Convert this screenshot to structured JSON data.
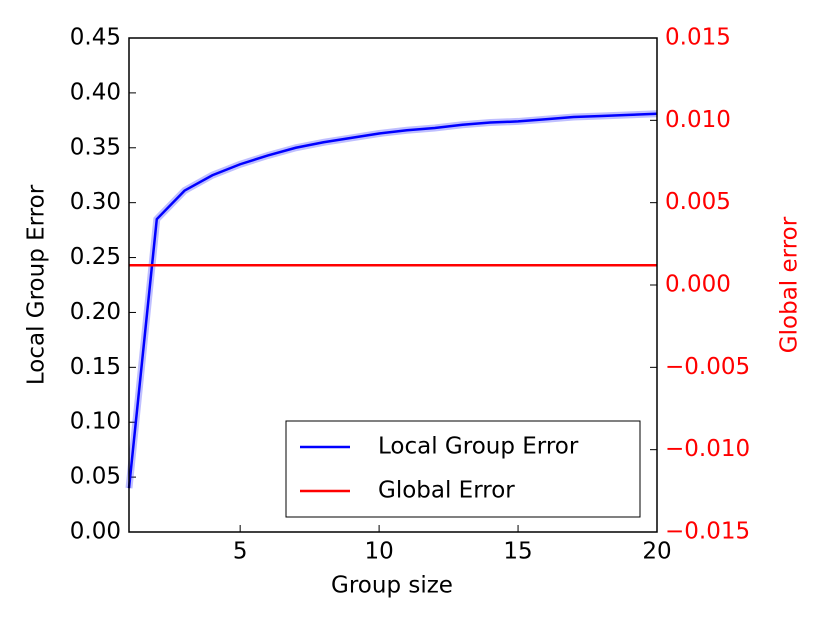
{
  "chart_data": {
    "type": "line",
    "xlabel": "Group size",
    "ylabel": "Local Group Error",
    "y2label": "Global error",
    "x": [
      1,
      2,
      3,
      4,
      5,
      6,
      7,
      8,
      9,
      10,
      11,
      12,
      13,
      14,
      15,
      16,
      17,
      18,
      19,
      20
    ],
    "series": [
      {
        "name": "Local Group Error",
        "color": "#0000ff",
        "values": [
          0.04,
          0.285,
          0.311,
          0.325,
          0.335,
          0.343,
          0.35,
          0.355,
          0.359,
          0.363,
          0.366,
          0.368,
          0.371,
          0.373,
          0.374,
          0.376,
          0.378,
          0.379,
          0.38,
          0.381
        ]
      },
      {
        "name": "Global Error",
        "color": "#ff0000",
        "axis": "y2",
        "values": [
          0.0012,
          0.0012,
          0.0012,
          0.0012,
          0.0012,
          0.0012,
          0.0012,
          0.0012,
          0.0012,
          0.0012,
          0.0012,
          0.0012,
          0.0012,
          0.0012,
          0.0012,
          0.0012,
          0.0012,
          0.0012,
          0.0012,
          0.0012
        ]
      }
    ],
    "xlim": [
      1,
      20
    ],
    "xticks": [
      5,
      10,
      15,
      20
    ],
    "ylim": [
      0,
      0.45
    ],
    "yticks": [
      {
        "value": 0,
        "label": "0.00"
      },
      {
        "value": 0.05,
        "label": "0.05"
      },
      {
        "value": 0.1,
        "label": "0.10"
      },
      {
        "value": 0.15,
        "label": "0.15"
      },
      {
        "value": 0.2,
        "label": "0.20"
      },
      {
        "value": 0.25,
        "label": "0.25"
      },
      {
        "value": 0.3,
        "label": "0.30"
      },
      {
        "value": 0.35,
        "label": "0.35"
      },
      {
        "value": 0.4,
        "label": "0.40"
      },
      {
        "value": 0.45,
        "label": "0.45"
      }
    ],
    "y2lim": [
      -0.015,
      0.015
    ],
    "y2ticks": [
      {
        "value": -0.015,
        "label": "−0.015"
      },
      {
        "value": -0.01,
        "label": "−0.010"
      },
      {
        "value": -0.005,
        "label": "−0.005"
      },
      {
        "value": 0,
        "label": "0.000"
      },
      {
        "value": 0.005,
        "label": "0.005"
      },
      {
        "value": 0.01,
        "label": "0.010"
      },
      {
        "value": 0.015,
        "label": "0.015"
      }
    ],
    "y2color": "#ff0000",
    "legend": "lower right"
  }
}
